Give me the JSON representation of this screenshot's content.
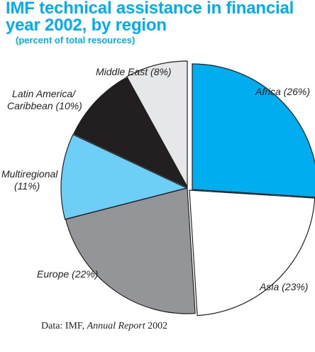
{
  "title_line1": "IMF technical assistance in financial",
  "title_line2": "year 2002, by region",
  "subtitle": "(percent of total resources)",
  "source": {
    "prefix": "Data:  IMF, ",
    "italic": "Annual Report",
    "suffix": " 2002"
  },
  "chart_data": {
    "type": "pie",
    "title": "IMF technical assistance in financial year 2002, by region",
    "subtitle": "(percent of total resources)",
    "slices": [
      {
        "label": "Africa (26%)",
        "name": "Africa",
        "value": 26,
        "color": "#00aeef"
      },
      {
        "label": "Asia (23%)",
        "name": "Asia",
        "value": 23,
        "color": "#ffffff"
      },
      {
        "label": "Europe (22%)",
        "name": "Europe",
        "value": 22,
        "color": "#939598"
      },
      {
        "label_lines": [
          "Multiregional",
          "(11%)"
        ],
        "name": "Multiregional",
        "value": 11,
        "color": "#6dcff6"
      },
      {
        "label_lines": [
          "Latin America/",
          "Caribbean (10%)"
        ],
        "name": "Latin America/Caribbean",
        "value": 10,
        "color": "#231f20"
      },
      {
        "label": "Middle East (8%)",
        "name": "Middle East",
        "value": 8,
        "color": "#e6e7e8"
      }
    ]
  }
}
